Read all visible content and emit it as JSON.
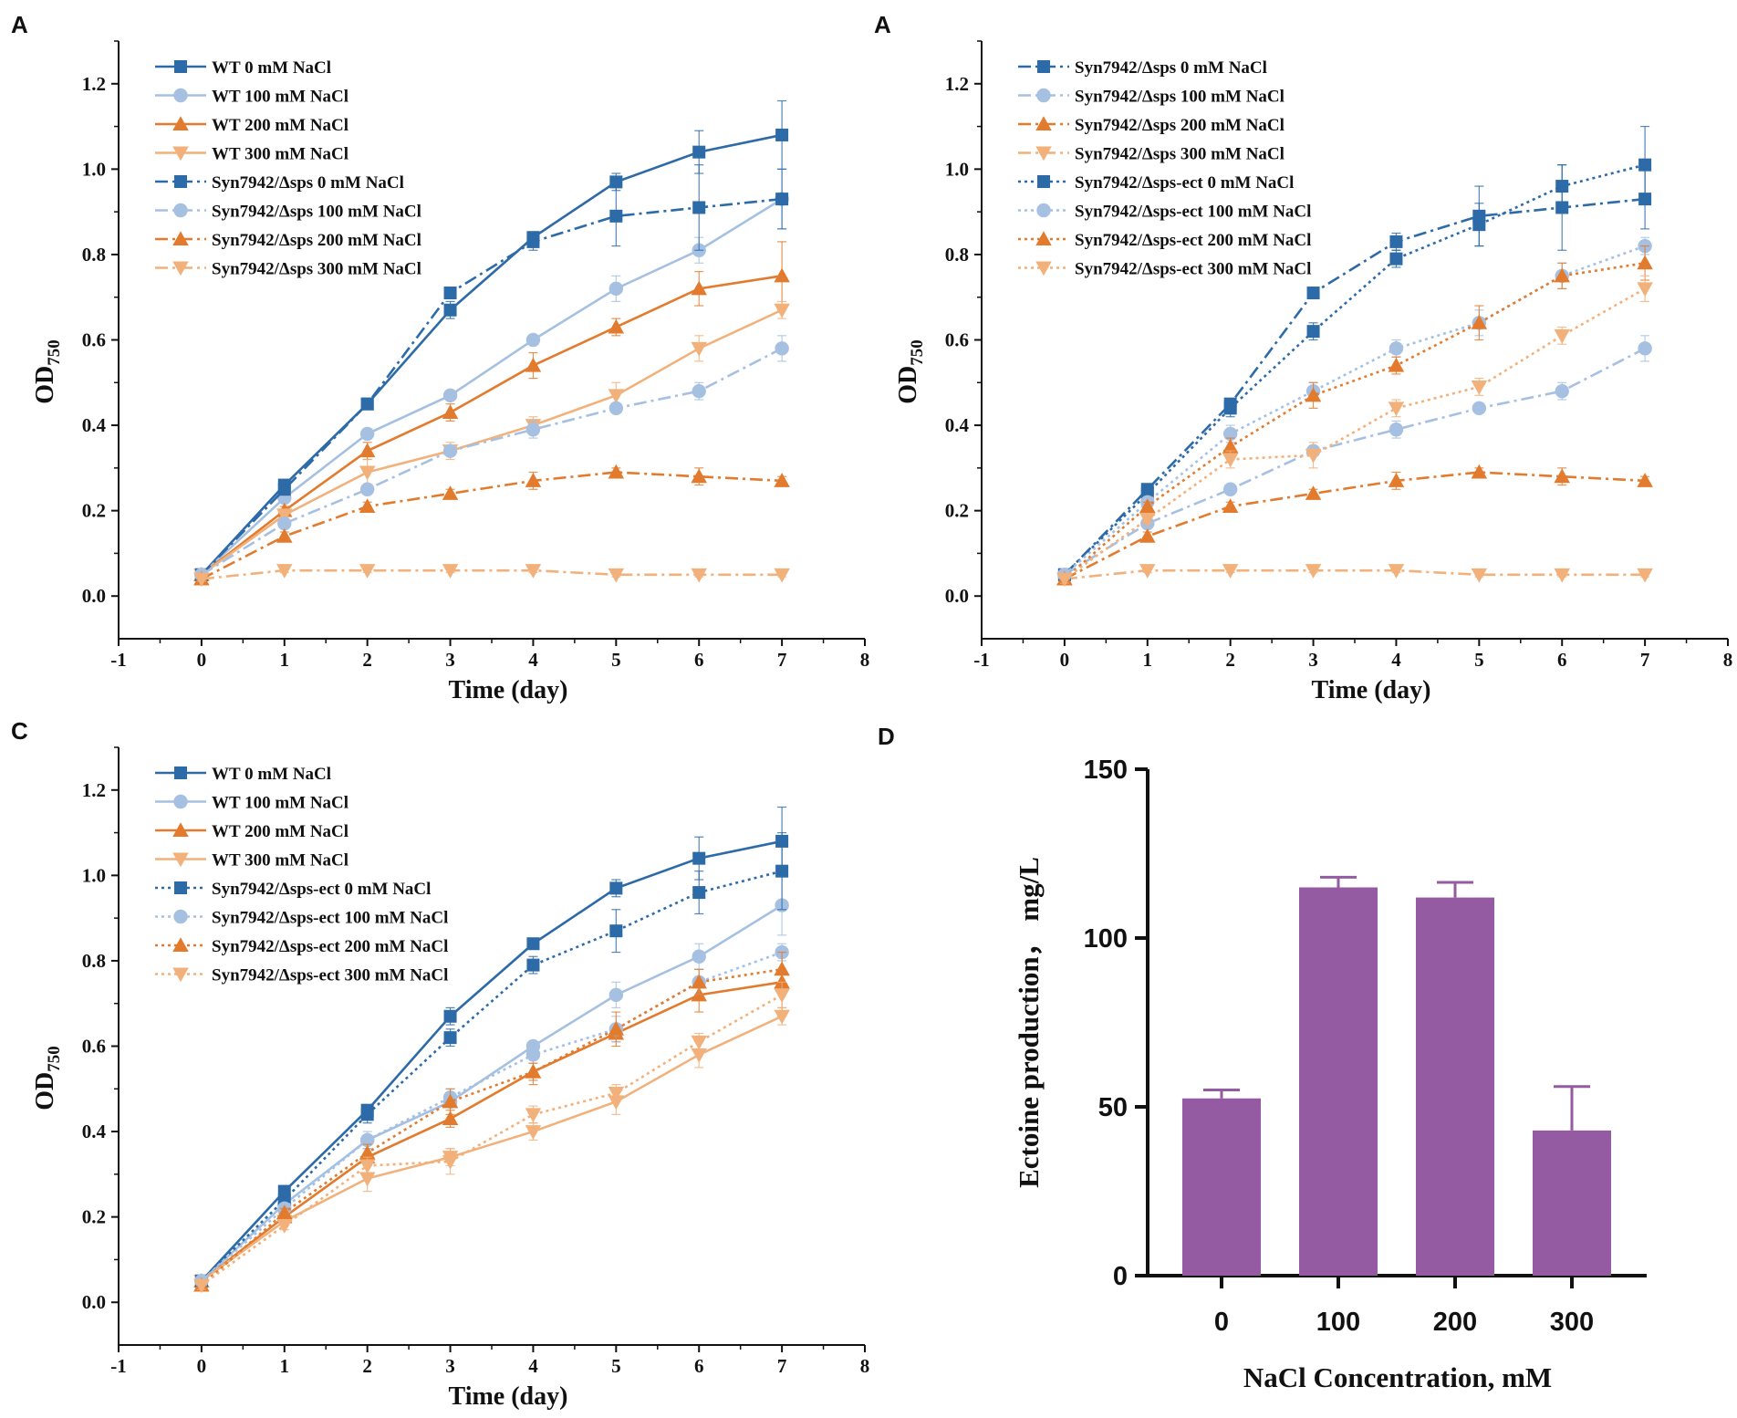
{
  "colors": {
    "c0": "#2c6aa8",
    "c100": "#a6c0e2",
    "c200": "#e27b2d",
    "c300": "#f2b07a",
    "bar": "#945aa2"
  },
  "chart_data": [
    {
      "id": "A1",
      "panel_label": "A",
      "type": "line",
      "xlabel": "Time (day)",
      "ylabel": "OD",
      "ylabel_sub": "750",
      "xlim": [
        -1,
        8
      ],
      "ylim": [
        -0.1,
        1.3
      ],
      "xticks": [
        -1,
        0,
        1,
        2,
        3,
        4,
        5,
        6,
        7,
        8
      ],
      "xtick_labels": [
        "-1",
        "0",
        "1",
        "2",
        "3",
        "4",
        "5",
        "6",
        "7",
        "8"
      ],
      "yticks": [
        0.0,
        0.2,
        0.4,
        0.6,
        0.8,
        1.0,
        1.2
      ],
      "ytick_labels": [
        "0.0",
        "0.2",
        "0.4",
        "0.6",
        "0.8",
        "1.0",
        "1.2"
      ],
      "x": [
        0,
        1,
        2,
        3,
        4,
        5,
        6,
        7
      ],
      "series": [
        {
          "name": "WT 0 mM NaCl",
          "color": "c0",
          "marker": "square",
          "dash": "solid",
          "values": [
            0.05,
            0.26,
            0.45,
            0.67,
            0.84,
            0.97,
            1.04,
            1.08
          ],
          "errors": [
            0.01,
            0.01,
            0.01,
            0.02,
            0.01,
            0.02,
            0.05,
            0.08
          ]
        },
        {
          "name": "WT 100 mM NaCl",
          "color": "c100",
          "marker": "circle",
          "dash": "solid",
          "values": [
            0.05,
            0.23,
            0.38,
            0.47,
            0.6,
            0.72,
            0.81,
            0.93
          ],
          "errors": [
            0.01,
            0.01,
            0.01,
            0.01,
            0.01,
            0.03,
            0.03,
            0.07
          ]
        },
        {
          "name": "WT 200 mM NaCl",
          "color": "c200",
          "marker": "triangle-up",
          "dash": "solid",
          "values": [
            0.05,
            0.2,
            0.34,
            0.43,
            0.54,
            0.63,
            0.72,
            0.75
          ],
          "errors": [
            0.01,
            0.01,
            0.02,
            0.02,
            0.03,
            0.02,
            0.04,
            0.08
          ]
        },
        {
          "name": "WT 300 mM NaCl",
          "color": "c300",
          "marker": "triangle-down",
          "dash": "solid",
          "values": [
            0.05,
            0.19,
            0.29,
            0.34,
            0.4,
            0.47,
            0.58,
            0.67
          ],
          "errors": [
            0.01,
            0.01,
            0.03,
            0.02,
            0.02,
            0.03,
            0.03,
            0.02
          ]
        },
        {
          "name": "Syn7942/Δsps 0 mM NaCl",
          "color": "c0",
          "marker": "square",
          "dash": "dashdot",
          "values": [
            0.05,
            0.25,
            0.45,
            0.71,
            0.83,
            0.89,
            0.91,
            0.93
          ],
          "errors": [
            0.01,
            0.01,
            0.01,
            0.01,
            0.02,
            0.07,
            0.1,
            0.07
          ]
        },
        {
          "name": "Syn7942/Δsps 100 mM NaCl",
          "color": "c100",
          "marker": "circle",
          "dash": "dashdot",
          "values": [
            0.05,
            0.17,
            0.25,
            0.34,
            0.39,
            0.44,
            0.48,
            0.58
          ],
          "errors": [
            0.01,
            0.01,
            0.01,
            0.01,
            0.02,
            0.01,
            0.02,
            0.03
          ]
        },
        {
          "name": "Syn7942/Δsps 200 mM NaCl",
          "color": "c200",
          "marker": "triangle-up",
          "dash": "dashdot",
          "values": [
            0.04,
            0.14,
            0.21,
            0.24,
            0.27,
            0.29,
            0.28,
            0.27
          ],
          "errors": [
            0.01,
            0.01,
            0.01,
            0.01,
            0.02,
            0.01,
            0.02,
            0.01
          ]
        },
        {
          "name": "Syn7942/Δsps 300 mM NaCl",
          "color": "c300",
          "marker": "triangle-down",
          "dash": "dashdot",
          "values": [
            0.04,
            0.06,
            0.06,
            0.06,
            0.06,
            0.05,
            0.05,
            0.05
          ],
          "errors": [
            0.005,
            0.005,
            0.005,
            0.005,
            0.005,
            0.005,
            0.005,
            0.005
          ]
        }
      ]
    },
    {
      "id": "A2",
      "panel_label": "A",
      "type": "line",
      "xlabel": "Time (day)",
      "ylabel": "OD",
      "ylabel_sub": "750",
      "xlim": [
        -1,
        8
      ],
      "ylim": [
        -0.1,
        1.3
      ],
      "xticks": [
        -1,
        0,
        1,
        2,
        3,
        4,
        5,
        6,
        7,
        8
      ],
      "xtick_labels": [
        "-1",
        "0",
        "1",
        "2",
        "3",
        "4",
        "5",
        "6",
        "7",
        "8"
      ],
      "yticks": [
        0.0,
        0.2,
        0.4,
        0.6,
        0.8,
        1.0,
        1.2
      ],
      "ytick_labels": [
        "0.0",
        "0.2",
        "0.4",
        "0.6",
        "0.8",
        "1.0",
        "1.2"
      ],
      "x": [
        0,
        1,
        2,
        3,
        4,
        5,
        6,
        7
      ],
      "series": [
        {
          "name": "Syn7942/Δsps 0 mM NaCl",
          "color": "c0",
          "marker": "square",
          "dash": "dashdot",
          "values": [
            0.05,
            0.25,
            0.45,
            0.71,
            0.83,
            0.89,
            0.91,
            0.93
          ],
          "errors": [
            0.01,
            0.01,
            0.01,
            0.01,
            0.02,
            0.07,
            0.1,
            0.07
          ]
        },
        {
          "name": "Syn7942/Δsps 100 mM NaCl",
          "color": "c100",
          "marker": "circle",
          "dash": "dashdot",
          "values": [
            0.05,
            0.17,
            0.25,
            0.34,
            0.39,
            0.44,
            0.48,
            0.58
          ],
          "errors": [
            0.01,
            0.01,
            0.01,
            0.01,
            0.02,
            0.01,
            0.02,
            0.03
          ]
        },
        {
          "name": "Syn7942/Δsps 200 mM NaCl",
          "color": "c200",
          "marker": "triangle-up",
          "dash": "dashdot",
          "values": [
            0.04,
            0.14,
            0.21,
            0.24,
            0.27,
            0.29,
            0.28,
            0.27
          ],
          "errors": [
            0.01,
            0.01,
            0.01,
            0.01,
            0.02,
            0.01,
            0.02,
            0.01
          ]
        },
        {
          "name": "Syn7942/Δsps 300 mM NaCl",
          "color": "c300",
          "marker": "triangle-down",
          "dash": "dashdot",
          "values": [
            0.04,
            0.06,
            0.06,
            0.06,
            0.06,
            0.05,
            0.05,
            0.05
          ],
          "errors": [
            0.005,
            0.005,
            0.005,
            0.005,
            0.005,
            0.005,
            0.005,
            0.005
          ]
        },
        {
          "name": "Syn7942/Δsps-ect 0 mM NaCl",
          "color": "c0",
          "marker": "square",
          "dash": "dot",
          "values": [
            0.05,
            0.24,
            0.44,
            0.62,
            0.79,
            0.87,
            0.96,
            1.01
          ],
          "errors": [
            0.01,
            0.01,
            0.02,
            0.02,
            0.02,
            0.05,
            0.05,
            0.09
          ]
        },
        {
          "name": "Syn7942/Δsps-ect 100 mM NaCl",
          "color": "c100",
          "marker": "circle",
          "dash": "dot",
          "values": [
            0.05,
            0.22,
            0.38,
            0.48,
            0.58,
            0.64,
            0.75,
            0.82
          ],
          "errors": [
            0.01,
            0.01,
            0.02,
            0.02,
            0.02,
            0.03,
            0.03,
            0.02
          ]
        },
        {
          "name": "Syn7942/Δsps-ect 200 mM NaCl",
          "color": "c200",
          "marker": "triangle-up",
          "dash": "dot",
          "values": [
            0.04,
            0.21,
            0.35,
            0.47,
            0.54,
            0.64,
            0.75,
            0.78
          ],
          "errors": [
            0.01,
            0.01,
            0.02,
            0.03,
            0.02,
            0.04,
            0.03,
            0.04
          ]
        },
        {
          "name": "Syn7942/Δsps-ect 300 mM NaCl",
          "color": "c300",
          "marker": "triangle-down",
          "dash": "dot",
          "values": [
            0.04,
            0.18,
            0.32,
            0.33,
            0.44,
            0.49,
            0.61,
            0.72
          ],
          "errors": [
            0.01,
            0.01,
            0.02,
            0.03,
            0.02,
            0.02,
            0.02,
            0.03
          ]
        }
      ]
    },
    {
      "id": "C",
      "panel_label": "C",
      "type": "line",
      "xlabel": "Time (day)",
      "ylabel": "OD",
      "ylabel_sub": "750",
      "xlim": [
        -1,
        8
      ],
      "ylim": [
        -0.1,
        1.3
      ],
      "xticks": [
        -1,
        0,
        1,
        2,
        3,
        4,
        5,
        6,
        7,
        8
      ],
      "xtick_labels": [
        "-1",
        "0",
        "1",
        "2",
        "3",
        "4",
        "5",
        "6",
        "7",
        "8"
      ],
      "yticks": [
        0.0,
        0.2,
        0.4,
        0.6,
        0.8,
        1.0,
        1.2
      ],
      "ytick_labels": [
        "0.0",
        "0.2",
        "0.4",
        "0.6",
        "0.8",
        "1.0",
        "1.2"
      ],
      "x": [
        0,
        1,
        2,
        3,
        4,
        5,
        6,
        7
      ],
      "series": [
        {
          "name": "WT 0 mM NaCl",
          "color": "c0",
          "marker": "square",
          "dash": "solid",
          "values": [
            0.05,
            0.26,
            0.45,
            0.67,
            0.84,
            0.97,
            1.04,
            1.08
          ],
          "errors": [
            0.01,
            0.01,
            0.01,
            0.02,
            0.01,
            0.02,
            0.05,
            0.08
          ]
        },
        {
          "name": "WT 100 mM NaCl",
          "color": "c100",
          "marker": "circle",
          "dash": "solid",
          "values": [
            0.05,
            0.23,
            0.38,
            0.47,
            0.6,
            0.72,
            0.81,
            0.93
          ],
          "errors": [
            0.01,
            0.01,
            0.01,
            0.01,
            0.01,
            0.03,
            0.03,
            0.07
          ]
        },
        {
          "name": "WT 200 mM NaCl",
          "color": "c200",
          "marker": "triangle-up",
          "dash": "solid",
          "values": [
            0.05,
            0.2,
            0.34,
            0.43,
            0.54,
            0.63,
            0.72,
            0.75
          ],
          "errors": [
            0.01,
            0.01,
            0.02,
            0.02,
            0.03,
            0.02,
            0.04,
            0.08
          ]
        },
        {
          "name": "WT 300 mM NaCl",
          "color": "c300",
          "marker": "triangle-down",
          "dash": "solid",
          "values": [
            0.05,
            0.19,
            0.29,
            0.34,
            0.4,
            0.47,
            0.58,
            0.67
          ],
          "errors": [
            0.01,
            0.01,
            0.03,
            0.02,
            0.02,
            0.03,
            0.03,
            0.02
          ]
        },
        {
          "name": "Syn7942/Δsps-ect 0 mM NaCl",
          "color": "c0",
          "marker": "square",
          "dash": "dot",
          "values": [
            0.05,
            0.24,
            0.44,
            0.62,
            0.79,
            0.87,
            0.96,
            1.01
          ],
          "errors": [
            0.01,
            0.01,
            0.02,
            0.02,
            0.02,
            0.05,
            0.05,
            0.09
          ]
        },
        {
          "name": "Syn7942/Δsps-ect 100 mM NaCl",
          "color": "c100",
          "marker": "circle",
          "dash": "dot",
          "values": [
            0.05,
            0.22,
            0.38,
            0.48,
            0.58,
            0.64,
            0.75,
            0.82
          ],
          "errors": [
            0.01,
            0.01,
            0.02,
            0.02,
            0.02,
            0.03,
            0.03,
            0.02
          ]
        },
        {
          "name": "Syn7942/Δsps-ect 200 mM NaCl",
          "color": "c200",
          "marker": "triangle-up",
          "dash": "dot",
          "values": [
            0.04,
            0.21,
            0.35,
            0.47,
            0.54,
            0.64,
            0.75,
            0.78
          ],
          "errors": [
            0.01,
            0.01,
            0.02,
            0.03,
            0.02,
            0.04,
            0.03,
            0.04
          ]
        },
        {
          "name": "Syn7942/Δsps-ect 300 mM NaCl",
          "color": "c300",
          "marker": "triangle-down",
          "dash": "dot",
          "values": [
            0.04,
            0.18,
            0.32,
            0.33,
            0.44,
            0.49,
            0.61,
            0.72
          ],
          "errors": [
            0.01,
            0.01,
            0.02,
            0.03,
            0.02,
            0.02,
            0.02,
            0.03
          ]
        }
      ]
    },
    {
      "id": "D",
      "panel_label": "D",
      "type": "bar",
      "xlabel": "NaCl Concentration, mM",
      "ylabel": "Ectoine production， mg/L",
      "ylim": [
        0,
        150
      ],
      "yticks": [
        0,
        50,
        100,
        150
      ],
      "ytick_labels": [
        "0",
        "50",
        "100",
        "150"
      ],
      "categories": [
        "0",
        "100",
        "200",
        "300"
      ],
      "values": [
        52.5,
        115,
        112,
        43
      ],
      "errors": [
        2.5,
        3,
        4.5,
        13
      ],
      "color": "bar"
    }
  ]
}
